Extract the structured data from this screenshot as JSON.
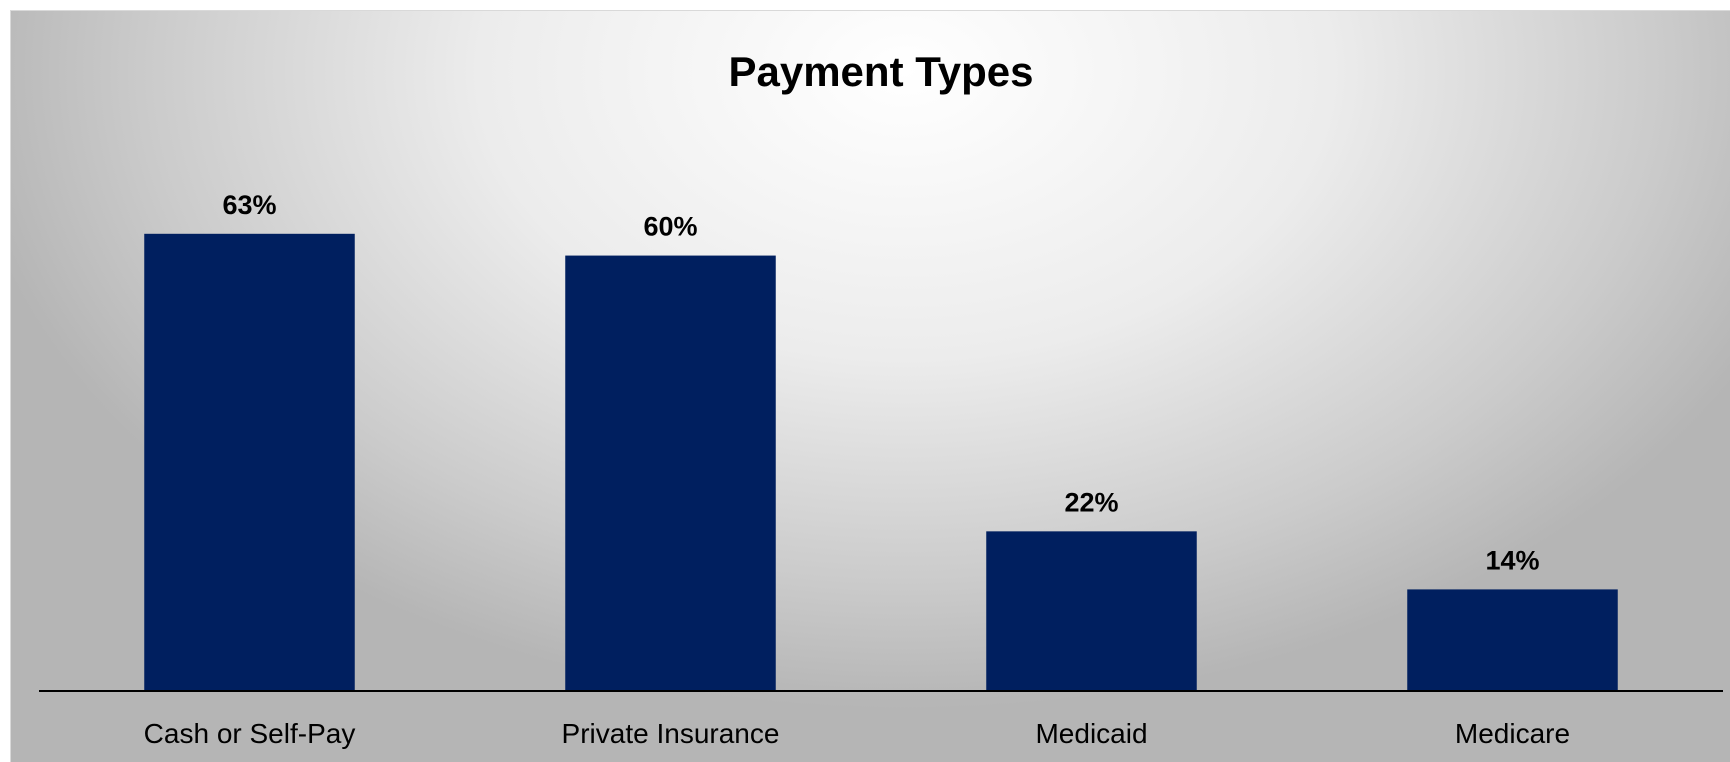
{
  "chart_data": {
    "type": "bar",
    "title": "Payment Types",
    "categories": [
      "Cash or Self-Pay",
      "Private Insurance",
      "Medicaid",
      "Medicare"
    ],
    "values": [
      63,
      60,
      22,
      14
    ],
    "data_labels": [
      "63%",
      "60%",
      "22%",
      "14%"
    ],
    "ylim": [
      0,
      70
    ],
    "xlabel": "",
    "ylabel": "",
    "grid": false,
    "legend": "none",
    "bar_color": "#001f5f",
    "axis_color": "#000000"
  }
}
